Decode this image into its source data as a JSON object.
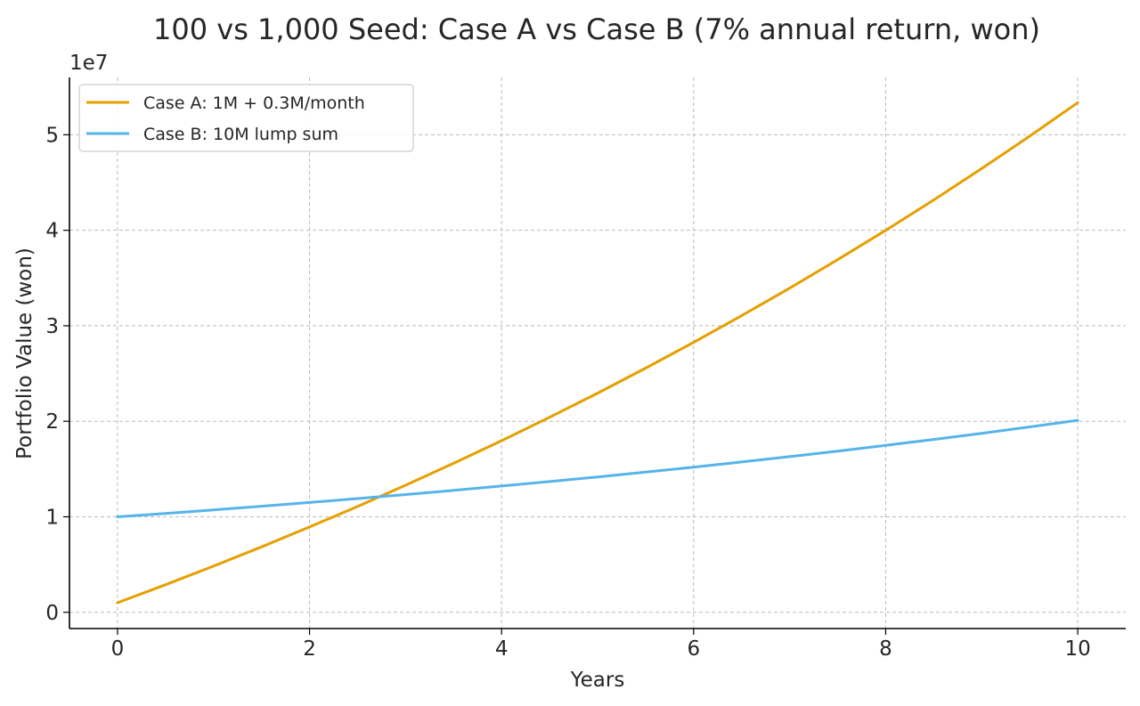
{
  "chart_data": {
    "type": "line",
    "title": "100 vs 1,000 Seed: Case A vs Case B (7% annual return, won)",
    "xlabel": "Years",
    "ylabel": "Portfolio Value (won)",
    "y_exponent_label": "1e7",
    "xlim": [
      -0.5,
      10.5
    ],
    "ylim": [
      -1700000,
      56000000
    ],
    "x_ticks": [
      0,
      2,
      4,
      6,
      8,
      10
    ],
    "y_ticks": [
      0,
      10000000,
      20000000,
      30000000,
      40000000,
      50000000
    ],
    "y_tick_labels": [
      "0",
      "1",
      "2",
      "3",
      "4",
      "5"
    ],
    "x_tick_labels": [
      "0",
      "2",
      "4",
      "6",
      "8",
      "10"
    ],
    "grid": true,
    "legend_position": "top-left",
    "x": [
      0,
      0.5,
      1,
      1.5,
      2,
      2.5,
      3,
      3.5,
      4,
      4.5,
      5,
      5.5,
      6,
      6.5,
      7,
      7.5,
      8,
      8.5,
      9,
      9.5,
      10
    ],
    "series": [
      {
        "name": "Case A: 1M + 0.3M/month",
        "color": "#E69F00",
        "values": [
          1000000,
          2888000,
          4837000,
          6851000,
          8932000,
          11082000,
          13303000,
          15598000,
          17969000,
          20418000,
          22949000,
          25563000,
          28265000,
          31056000,
          33939000,
          36918000,
          39996000,
          43176000,
          46461000,
          49855000,
          53362000
        ]
      },
      {
        "name": "Case B: 10M lump sum",
        "color": "#56B4E9",
        "values": [
          10000000,
          10355000,
          10723000,
          11104000,
          11498000,
          11907000,
          12330000,
          12768000,
          13221000,
          13691000,
          14177000,
          14681000,
          15202000,
          15742000,
          16302000,
          16881000,
          17481000,
          18102000,
          18745000,
          19411000,
          20101000
        ]
      }
    ]
  }
}
